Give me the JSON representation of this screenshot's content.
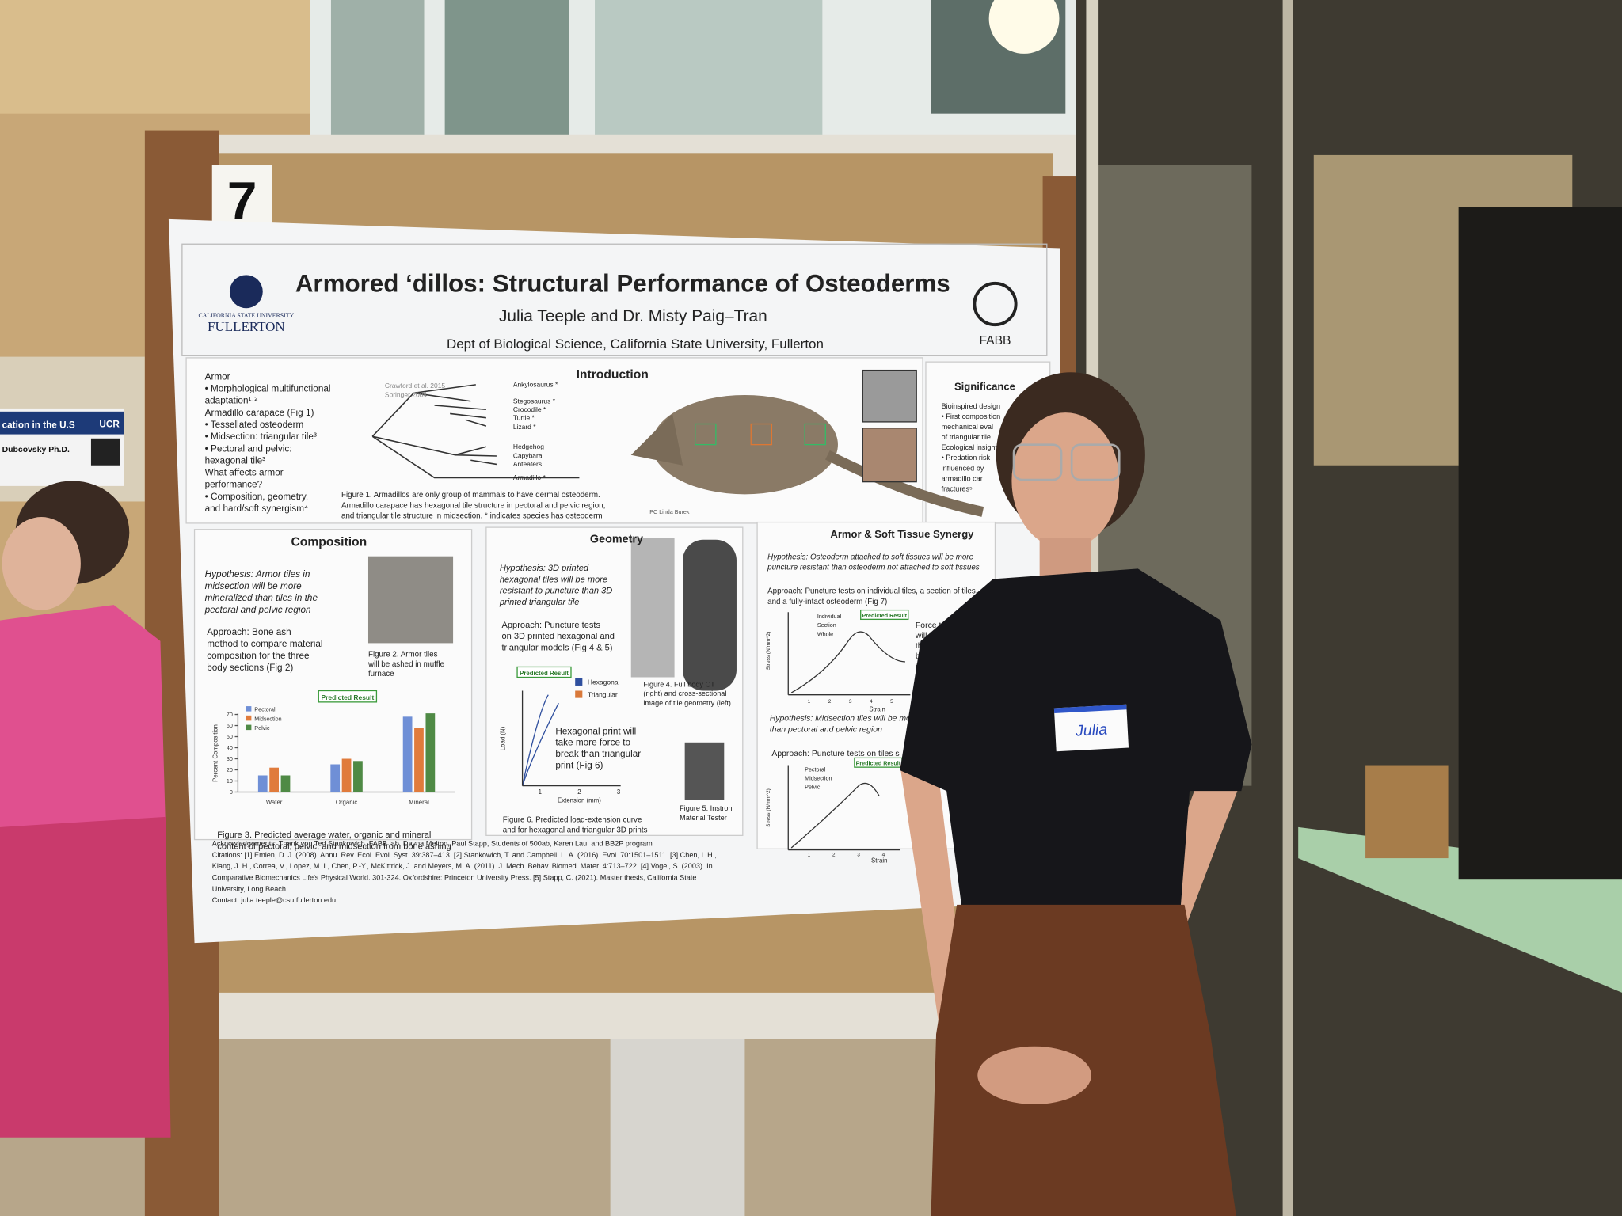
{
  "board_number": "7",
  "left_poster": {
    "title": "cation in the U.S",
    "logo": "UCR",
    "author": "Dubcovsky Ph.D."
  },
  "poster": {
    "institution": {
      "line1": "CALIFORNIA STATE UNIVERSITY",
      "line2": "FULLERTON"
    },
    "lab_logo": "FABB",
    "title": "Armored ‘dillos: Structural Performance of Osteoderms",
    "authors": "Julia Teeple and Dr. Misty Paig–Tran",
    "affiliation": "Dept of Biological Science, California State University, Fullerton",
    "armor_notes": [
      "Armor",
      "  •  Morphological multifunctional",
      "      adaptation¹·²",
      "Armadillo carapace (Fig 1)",
      "  •  Tessellated osteoderm",
      "      •  Midsection: triangular tile³",
      "      •  Pectoral and pelvic:",
      "          hexagonal tile³",
      "What affects armor",
      "performance?",
      "  •  Composition, geometry,",
      "      and hard/soft synergism⁴"
    ],
    "introduction": {
      "heading": "Introduction",
      "citation": [
        "Crawford et al. 2015",
        "Springer 2004"
      ],
      "taxa": [
        "Ankylosaurus *",
        "Stegosaurus *",
        "Crocodile *",
        "Turtle *",
        "Lizard *",
        "Hedgehog",
        "Capybara",
        "Anteaters",
        "Armadillo *"
      ],
      "photo_credit": "PC Linda Burek",
      "caption": [
        "Figure 1. Armadillos are only group of mammals to have dermal osteoderm.",
        "Armadillo carapace has hexagonal tile structure in pectoral and pelvic region,",
        "and triangular tile structure in midsection. * indicates species has osteoderm"
      ]
    },
    "significance": {
      "heading": "Significance",
      "lines": [
        "Bioinspired design",
        "  •  First composition",
        "      mechanical eval",
        "      of triangular tile",
        "Ecological insight",
        "  •  Predation risk",
        "      influenced by",
        "      armadillo car",
        "      fractures⁵"
      ]
    },
    "composition": {
      "heading": "Composition",
      "hypothesis": [
        "Hypothesis: Armor tiles in",
        "midsection will be more",
        "mineralized than tiles in the",
        "pectoral and pelvic region"
      ],
      "approach": [
        "Approach: Bone ash",
        "method to compare material",
        "composition for the three",
        "body sections (Fig 2)"
      ],
      "fig2_caption": [
        "Figure 2. Armor tiles",
        "will be ashed  in muffle",
        "furnace"
      ],
      "predicted": "Predicted Result",
      "fig3": {
        "type": "bar",
        "y_label": "Percent Composition",
        "categories": [
          "Water",
          "Organic",
          "Mineral"
        ],
        "series": [
          {
            "name": "Pectoral",
            "color": "#6f8fd6",
            "values": [
              15,
              25,
              68
            ]
          },
          {
            "name": "Midsection",
            "color": "#e07b3c",
            "values": [
              22,
              30,
              58
            ]
          },
          {
            "name": "Pelvic",
            "color": "#4f8a45",
            "values": [
              15,
              28,
              71
            ]
          }
        ],
        "ylim": [
          0,
          70
        ],
        "yticks": [
          0,
          10,
          20,
          30,
          40,
          50,
          60,
          70
        ]
      },
      "fig3_caption": [
        "Figure 3. Predicted average water, organic and mineral",
        "content of pectoral, pelvic, and midsection from bone ashing"
      ]
    },
    "geometry": {
      "heading": "Geometry",
      "hypothesis": [
        "Hypothesis: 3D printed",
        "hexagonal tiles will be more",
        "resistant to puncture than 3D",
        "printed triangular tile"
      ],
      "approach": [
        "Approach: Puncture tests",
        "on 3D printed hexagonal and",
        "triangular models (Fig 4 & 5)"
      ],
      "fig4_caption": [
        "Figure 4. Full body CT",
        "(right) and cross-sectional",
        "image of tile geometry (left)"
      ],
      "predicted": "Predicted Result",
      "fig6": {
        "legend": [
          "Hexagonal",
          "Triangular"
        ],
        "colors": [
          "#2f4f9e",
          "#d9793a"
        ],
        "y_label": "Load (N)",
        "x_label": "Extension (mm)",
        "xticks": [
          1,
          2,
          3
        ]
      },
      "note": [
        "Hexagonal print will",
        "take more force to",
        "break than triangular",
        "print (Fig 6)"
      ],
      "fig6_caption": [
        "Figure 6. Predicted load-extension curve",
        "and for hexagonal and triangular 3D prints"
      ],
      "fig5_caption": [
        "Figure 5. Instron",
        "Material Tester"
      ]
    },
    "synergy": {
      "heading": "Armor & Soft Tissue Synergy",
      "hypothesis": [
        "Hypothesis: Osteoderm attached to soft tissues will be more",
        "puncture resistant than osteoderm not attached to soft tissues"
      ],
      "approach": [
        "Approach: Puncture tests on individual tiles, a section of tiles,",
        "and a fully-intact osteoderm (Fig 7)"
      ],
      "predicted": [
        "Predicted Result",
        "Predicted Result"
      ],
      "fig7": {
        "legend": [
          "Individual",
          "Section",
          "Whole"
        ],
        "y_label": "Stress (N/mm^2)",
        "x_label": "Strain",
        "xticks": [
          1,
          2,
          3,
          4,
          5
        ]
      },
      "note": [
        "Force to yield",
        "will be less",
        "the wh",
        "body",
        "indivi"
      ],
      "hypothesis2": [
        "Hypothesis: Midsection tiles will be mo",
        "than pectoral and pelvic region"
      ],
      "approach2": "Approach: Puncture tests on tiles s",
      "fig8": {
        "legend": [
          "Pectoral",
          "Midsection",
          "Pelvic"
        ],
        "y_label": "Stress (N/mm^2)",
        "x_label": "Strain",
        "xticks": [
          1,
          2,
          3,
          4
        ]
      }
    },
    "acknowledgements": [
      "Acknowledgements: Thank you Ted Stankowich, FABB lab, Dayna Melton, Paul Stapp, Students of 500ab, Karen Lau, and BB2P program",
      "Citations: [1] Emlen, D. J. (2008). Annu. Rev. Ecol. Evol. Syst. 39:387–413. [2] Stankowich, T. and Campbell, L. A. (2016). Evol. 70:1501–1511. [3] Chen, I. H.,",
      "Kiang, J. H., Correa, V., Lopez, M. I., Chen, P.-Y., McKittrick, J. and Meyers, M. A. (2011). J. Mech. Behav. Biomed. Mater. 4:713–722. [4] Vogel, S. (2003). In",
      "Comparative Biomechanics Life's Physical World. 301-324. Oxfordshire: Princeton University Press. [5] Stapp, C. (2021). Master thesis, California State",
      "University, Long Beach.",
      "Contact: julia.teeple@csu.fullerton.edu"
    ]
  },
  "name_tag": "Julia"
}
